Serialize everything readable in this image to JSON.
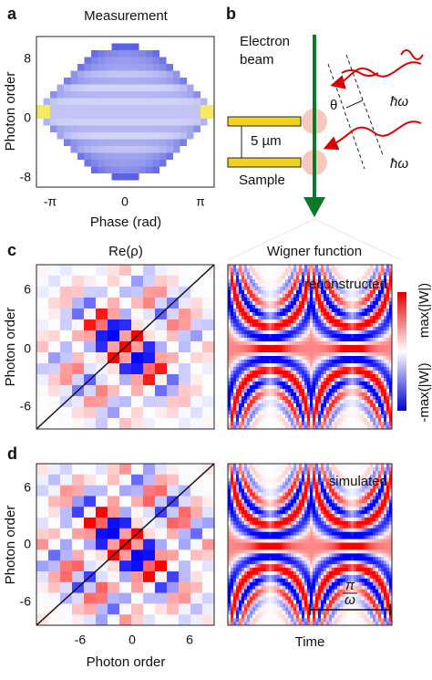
{
  "panels": {
    "a": {
      "label": "a",
      "title": "Measurement",
      "ylabel": "Photon order",
      "xlabel": "Phase (rad)",
      "yticks": [
        "8",
        "0",
        "-8"
      ],
      "xticks": [
        "-π",
        "0",
        "π"
      ]
    },
    "b": {
      "label": "b",
      "beam": [
        "Electron",
        "beam"
      ],
      "distance": "5 µm",
      "sample": "Sample",
      "angle": "θ",
      "photon": [
        "ħω",
        "ħω"
      ]
    },
    "c": {
      "label": "c",
      "title_left": "Re(ρ)",
      "title_right": "Wigner function",
      "ylabel": "Photon order",
      "yticks": [
        "6",
        "0",
        "-6"
      ],
      "note": "reconstructed",
      "colorbar": [
        "max(|W|)",
        "-max(|W|)"
      ]
    },
    "d": {
      "label": "d",
      "ylabel": "Photon order",
      "xlabel": "Photon order",
      "yticks": [
        "6",
        "0",
        "-6"
      ],
      "xticks": [
        "-6",
        "0",
        "6"
      ],
      "note": "simulated",
      "scale": [
        "π",
        "ω"
      ],
      "time": "Time"
    }
  }
}
